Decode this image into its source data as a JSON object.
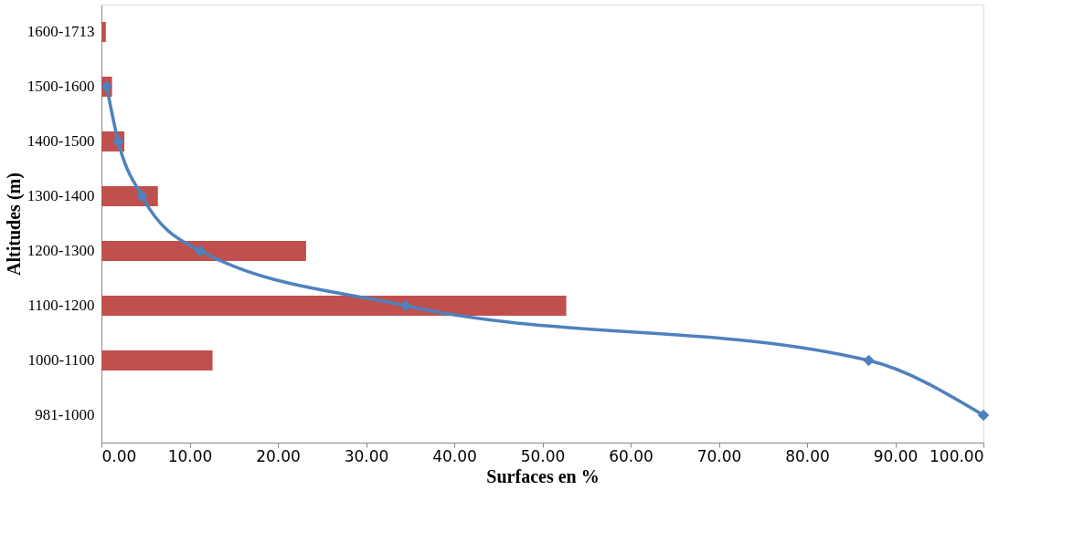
{
  "chart_data": {
    "type": "bar",
    "orientation": "horizontal",
    "xlabel": "Surfaces en %",
    "ylabel": "Altitudes (m)",
    "categories": [
      "1600-1713",
      "1500-1600",
      "1400-1500",
      "1300-1400",
      "1200-1300",
      "1100-1200",
      "1000-1100",
      "981-1000"
    ],
    "series": [
      {
        "type": "bar",
        "color": "#c0504d",
        "values": [
          0.5,
          1.2,
          2.6,
          6.4,
          23.2,
          52.7,
          12.6,
          null
        ]
      },
      {
        "type": "line",
        "color": "#4f81bd",
        "marker": "diamond",
        "values": [
          null,
          0.6,
          1.9,
          4.6,
          11.2,
          34.5,
          87.0,
          100
        ]
      }
    ],
    "xlim": [
      0,
      100
    ],
    "xticks": [
      {
        "value": 0,
        "label": "0.00"
      },
      {
        "value": 10,
        "label": "10.00"
      },
      {
        "value": 20,
        "label": "20.00"
      },
      {
        "value": 30,
        "label": "30.00"
      },
      {
        "value": 40,
        "label": "40.00"
      },
      {
        "value": 50,
        "label": "50.00"
      },
      {
        "value": 60,
        "label": "60.00"
      },
      {
        "value": 70,
        "label": "70.00"
      },
      {
        "value": 80,
        "label": "80.00"
      },
      {
        "value": 90,
        "label": "90.00"
      },
      {
        "value": 100,
        "label": "100.00"
      }
    ]
  }
}
